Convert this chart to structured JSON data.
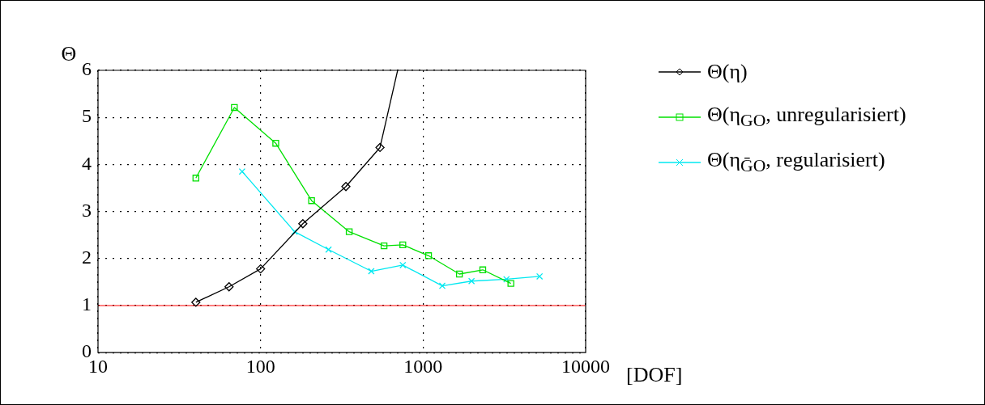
{
  "chart_data": {
    "type": "line",
    "ylabel": "Θ",
    "xlabel": "[DOF]",
    "log": "x",
    "grid": true,
    "legend": "right",
    "xlim": [
      10,
      10000
    ],
    "xticks": [
      10,
      100,
      1000,
      10000
    ],
    "ylim": [
      0,
      6
    ],
    "yticks": [
      0,
      1,
      2,
      3,
      4,
      5,
      6
    ],
    "series": [
      {
        "name": "Θ(η)",
        "color": "#000000",
        "marker": "diamond",
        "x": [
          40,
          64,
          100,
          182,
          335,
          543,
          697
        ],
        "values": [
          1.07,
          1.4,
          1.78,
          2.74,
          3.53,
          4.36,
          6
        ]
      },
      {
        "name": "Θ(η$_{GO}$, unregularisiert)",
        "color": "#00e000",
        "marker": "square",
        "x": [
          40,
          69,
          124,
          206,
          351,
          575,
          750,
          1080,
          1672,
          2328,
          3467
        ],
        "values": [
          3.71,
          5.21,
          4.45,
          3.23,
          2.57,
          2.27,
          2.29,
          2.06,
          1.67,
          1.76,
          1.47
        ]
      },
      {
        "name": "Θ(η$_{ḠO}$, regularisiert)",
        "color": "#00e8f0",
        "marker": "cross",
        "x": [
          77,
          162,
          262,
          480,
          750,
          1312,
          1986,
          3258,
          5207
        ],
        "values": [
          3.85,
          2.57,
          2.19,
          1.73,
          1.86,
          1.42,
          1.52,
          1.56,
          1.62
        ]
      }
    ],
    "ref_lines": [
      {
        "axis": "y",
        "value": 1,
        "color": "#ff0000"
      }
    ]
  }
}
